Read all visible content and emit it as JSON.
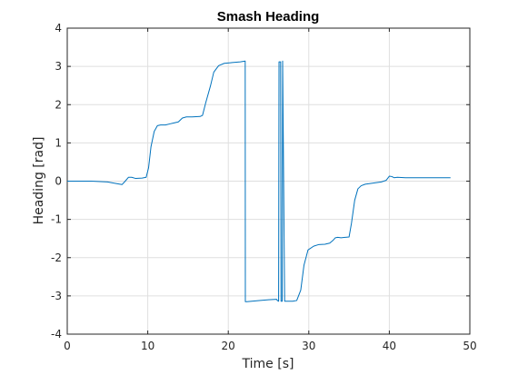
{
  "chart_data": {
    "type": "line",
    "title": "Smash Heading",
    "xlabel": "Time [s]",
    "ylabel": "Heading [rad]",
    "xlim": [
      0,
      50
    ],
    "ylim": [
      -4,
      4
    ],
    "xticks": [
      0,
      10,
      20,
      30,
      40,
      50
    ],
    "yticks": [
      -4,
      -3,
      -2,
      -1,
      0,
      1,
      2,
      3,
      4
    ],
    "grid": true,
    "series": [
      {
        "color": "#0072BD",
        "x": [
          0,
          3,
          5,
          6,
          6.8,
          7.2,
          7.6,
          8,
          8.5,
          9.3,
          9.8,
          10.1,
          10.4,
          10.8,
          11.2,
          11.6,
          12.2,
          12.8,
          13.2,
          13.8,
          14.3,
          14.8,
          15.5,
          16.5,
          16.8,
          17.2,
          17.8,
          18.2,
          18.8,
          19.5,
          20.5,
          21.5,
          22.1,
          22.12,
          22.3,
          24,
          25,
          26,
          26.1,
          26.25,
          26.3,
          26.5,
          26.55,
          26.7,
          26.75,
          27,
          28,
          28.5,
          29,
          29.4,
          29.9,
          30.6,
          31.2,
          32,
          32.6,
          33,
          33.3,
          33.6,
          34,
          34.5,
          35,
          35.3,
          35.7,
          36.1,
          36.5,
          37,
          38,
          39,
          39.6,
          40,
          40.3,
          40.6,
          41,
          42,
          45,
          47.6
        ],
        "y": [
          0,
          0,
          -0.02,
          -0.06,
          -0.09,
          0,
          0.1,
          0.1,
          0.07,
          0.08,
          0.1,
          0.35,
          0.9,
          1.3,
          1.45,
          1.47,
          1.47,
          1.5,
          1.52,
          1.55,
          1.65,
          1.68,
          1.68,
          1.69,
          1.72,
          2.05,
          2.5,
          2.85,
          3.02,
          3.08,
          3.1,
          3.12,
          3.14,
          -3.15,
          -3.15,
          -3.12,
          -3.1,
          -3.09,
          -3.12,
          -3.14,
          3.12,
          3.12,
          -3.14,
          -3.14,
          3.14,
          -3.14,
          -3.14,
          -3.12,
          -2.85,
          -2.2,
          -1.8,
          -1.7,
          -1.66,
          -1.65,
          -1.62,
          -1.55,
          -1.48,
          -1.47,
          -1.48,
          -1.47,
          -1.46,
          -1.1,
          -0.5,
          -0.2,
          -0.12,
          -0.08,
          -0.05,
          -0.02,
          0.02,
          0.13,
          0.12,
          0.09,
          0.1,
          0.09,
          0.09,
          0.09
        ]
      }
    ]
  }
}
